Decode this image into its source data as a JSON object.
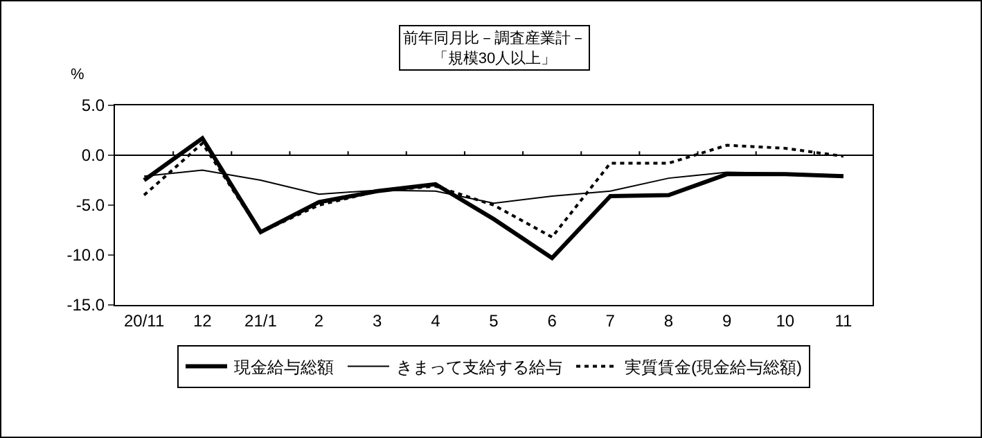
{
  "chart_data": {
    "type": "line",
    "title": "前年同月比－調査産業計－",
    "subtitle": "「規模30人以上」",
    "ref_lines": [
      {
        "axis": "y",
        "value": 0
      }
    ],
    "ylabel": "%",
    "categories": [
      "20/11",
      "12",
      "21/1",
      "2",
      "3",
      "4",
      "5",
      "6",
      "7",
      "8",
      "9",
      "10",
      "11"
    ],
    "series": [
      {
        "name": "現金給与総額",
        "color": "#000000",
        "line_style": "solid",
        "values": [
          -2.5,
          1.7,
          -7.7,
          -4.7,
          -3.6,
          -2.9,
          -6.4,
          -10.3,
          -4.1,
          -4.0,
          -1.9,
          -1.9,
          -2.1
        ]
      },
      {
        "name": "きまって支給する給与",
        "color": "#000000",
        "line_style": "solid",
        "values": [
          -2.1,
          -1.5,
          -2.5,
          -3.9,
          -3.5,
          -3.6,
          -4.8,
          -4.1,
          -3.6,
          -2.3,
          -1.7,
          -1.8,
          -2.0
        ]
      },
      {
        "name": "実質賃金(現金給与総額)",
        "color": "#000000",
        "line_style": "dotted",
        "values": [
          -4.0,
          1.2,
          -7.7,
          -5.0,
          -3.6,
          -3.1,
          -5.0,
          -8.2,
          -0.8,
          -0.8,
          1.0,
          0.7,
          -0.1
        ]
      }
    ],
    "ylim": [
      -15,
      5
    ],
    "yticks": [
      {
        "value": 5,
        "label": "5.0"
      },
      {
        "value": 0,
        "label": "0.0"
      },
      {
        "value": -5,
        "label": "-5.0"
      },
      {
        "value": -10,
        "label": "-10.0"
      },
      {
        "value": -15,
        "label": "-15.0"
      }
    ],
    "grid": false,
    "legend": "bottom",
    "marker": "none"
  }
}
